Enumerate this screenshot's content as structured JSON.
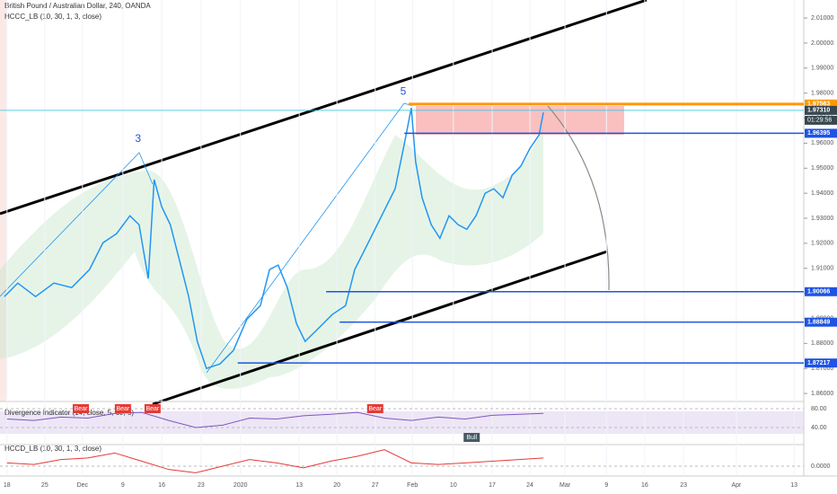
{
  "chart_data": [
    {
      "type": "line",
      "title": "British Pound / Australian Dollar, 240, OANDA",
      "subtitle": "HCCC_LB (10, 30, 1, 3, close)",
      "annotations": [
        {
          "text": "3",
          "x": 24.3,
          "y": 1.9617
        },
        {
          "text": "5",
          "x": 73.5,
          "y": 1.9805
        }
      ],
      "x": [
        -0.5,
        2,
        5.3,
        8.7,
        12,
        15.3,
        17.8,
        20.3,
        22.8,
        24.5,
        26.2,
        27.3,
        28.7,
        30.3,
        32,
        33.7,
        35.3,
        37,
        39.5,
        42,
        44.5,
        47,
        48.7,
        50.3,
        52,
        53.7,
        55.3,
        57.8,
        60.3,
        62.8,
        64.5,
        67,
        69.5,
        72,
        73.7,
        75,
        75.8,
        77,
        78.7,
        80.3,
        82,
        83.7,
        85.3,
        87,
        88.7,
        90.3,
        92,
        93.7,
        95.3,
        97,
        98.7,
        99.5
      ],
      "series": [
        {
          "name": "GBPAUD",
          "color": "#2196f3",
          "values": [
            1.8987,
            1.9041,
            1.8987,
            1.9041,
            1.9023,
            1.9095,
            1.9202,
            1.9238,
            1.931,
            1.9274,
            1.9059,
            1.9454,
            1.9346,
            1.9274,
            1.9131,
            1.8987,
            1.8808,
            1.87,
            1.8718,
            1.8772,
            1.8897,
            1.8951,
            1.9095,
            1.9113,
            1.9023,
            1.8879,
            1.8808,
            1.8861,
            1.8915,
            1.8951,
            1.9095,
            1.9202,
            1.931,
            1.9418,
            1.9597,
            1.9741,
            1.9526,
            1.9382,
            1.9274,
            1.922,
            1.931,
            1.9274,
            1.9256,
            1.931,
            1.94,
            1.9418,
            1.9382,
            1.9472,
            1.9508,
            1.9579,
            1.9633,
            1.9723
          ]
        }
      ],
      "levels": [
        {
          "value": 1.97563,
          "color": "#ff9800",
          "start": 74.5
        },
        {
          "value": 1.9731,
          "label": "1.97310",
          "color": "#26c6da",
          "start": -1.3
        },
        {
          "value": 1.96395,
          "color": "#1e53e5",
          "start": 73.7
        },
        {
          "value": 1.90066,
          "color": "#1e53e5",
          "start": 59.2
        },
        {
          "value": 1.88849,
          "color": "#1e53e5",
          "start": 61.7
        },
        {
          "value": 1.87217,
          "color": "#1e53e5",
          "start": 42.8
        }
      ],
      "countdown": "01:29:56",
      "xlim": [
        -1.3,
        147.8
      ],
      "ylim": [
        1.8568,
        2.0172
      ],
      "yticks": [
        {
          "value": 1.86,
          "label": "1.86000"
        },
        {
          "value": 1.87,
          "label": "1.87000"
        },
        {
          "value": 1.88,
          "label": "1.88000"
        },
        {
          "value": 1.89,
          "label": "1.89000"
        },
        {
          "value": 1.9,
          "label": "1.90000"
        },
        {
          "value": 1.91,
          "label": "1.91000"
        },
        {
          "value": 1.92,
          "label": "1.92000"
        },
        {
          "value": 1.93,
          "label": "1.93000"
        },
        {
          "value": 1.94,
          "label": "1.94000"
        },
        {
          "value": 1.95,
          "label": "1.95000"
        },
        {
          "value": 1.96,
          "label": "1.96000"
        },
        {
          "value": 1.97,
          "label": "1.97000"
        },
        {
          "value": 1.98,
          "label": "1.98000"
        },
        {
          "value": 1.99,
          "label": "1.99000"
        },
        {
          "value": 2.0,
          "label": "2.00000"
        },
        {
          "value": 2.01,
          "label": "2.01000"
        }
      ],
      "xticks": [
        {
          "value": 0,
          "label": "18"
        },
        {
          "value": 7,
          "label": "25"
        },
        {
          "value": 14,
          "label": "Dec"
        },
        {
          "value": 21.5,
          "label": "9"
        },
        {
          "value": 28.7,
          "label": "16"
        },
        {
          "value": 36,
          "label": "23"
        },
        {
          "value": 43.3,
          "label": "2020"
        },
        {
          "value": 54.2,
          "label": "13"
        },
        {
          "value": 61.2,
          "label": "20"
        },
        {
          "value": 68.3,
          "label": "27"
        },
        {
          "value": 75.2,
          "label": "Feb"
        },
        {
          "value": 82.8,
          "label": "10"
        },
        {
          "value": 90,
          "label": "17"
        },
        {
          "value": 97,
          "label": "24"
        },
        {
          "value": 103.5,
          "label": "Mar"
        },
        {
          "value": 111.2,
          "label": "9"
        },
        {
          "value": 118.3,
          "label": "16"
        },
        {
          "value": 125.5,
          "label": "23"
        },
        {
          "value": 135.3,
          "label": "Apr"
        },
        {
          "value": 146,
          "label": "13"
        }
      ]
    },
    {
      "type": "oscillator",
      "title": "Divergence Indicator (14, close, 5, 60, 5)",
      "x": [
        0,
        5,
        10,
        15,
        20,
        25,
        30,
        35,
        40,
        45,
        50,
        55,
        60,
        65,
        70,
        75,
        80,
        85,
        90,
        95,
        99.5
      ],
      "series": [
        {
          "name": "RSI",
          "color": "#7e57c2",
          "values": [
            58,
            55,
            62,
            60,
            70,
            72,
            55,
            40,
            45,
            60,
            58,
            65,
            68,
            72,
            60,
            55,
            62,
            58,
            66,
            68,
            70
          ]
        }
      ],
      "signals": [
        {
          "label": "Bear",
          "x": 13.7
        },
        {
          "label": "Bear",
          "x": 21.5
        },
        {
          "label": "Bear",
          "x": 27
        },
        {
          "label": "Bear",
          "x": 68.3
        },
        {
          "label": "Bull",
          "x": 86.2
        }
      ],
      "ylim": [
        3.8,
        93.3
      ],
      "yticks": [
        {
          "value": 80,
          "label": "80.00"
        },
        {
          "value": 40,
          "label": "40.00"
        }
      ]
    },
    {
      "type": "oscillator",
      "title": "HCCD_LB (10, 30, 1, 3, close)",
      "x": [
        0,
        5,
        10,
        15,
        20,
        25,
        30,
        35,
        40,
        45,
        50,
        55,
        60,
        65,
        70,
        75,
        80,
        85,
        90,
        95,
        99.5
      ],
      "series": [
        {
          "name": "HCCD",
          "color": "#e53935",
          "values": [
            0.002,
            0.001,
            0.004,
            0.005,
            0.008,
            0.003,
            -0.002,
            -0.004,
            0,
            0.004,
            0.002,
            -0.001,
            0.003,
            0.006,
            0.01,
            0.002,
            0.001,
            0.002,
            0.003,
            0.004,
            0.005
          ]
        }
      ],
      "signals": [],
      "ylim": [
        -0.006,
        0.012
      ],
      "yticks": [
        {
          "value": 0,
          "label": "0.0000"
        }
      ]
    }
  ]
}
